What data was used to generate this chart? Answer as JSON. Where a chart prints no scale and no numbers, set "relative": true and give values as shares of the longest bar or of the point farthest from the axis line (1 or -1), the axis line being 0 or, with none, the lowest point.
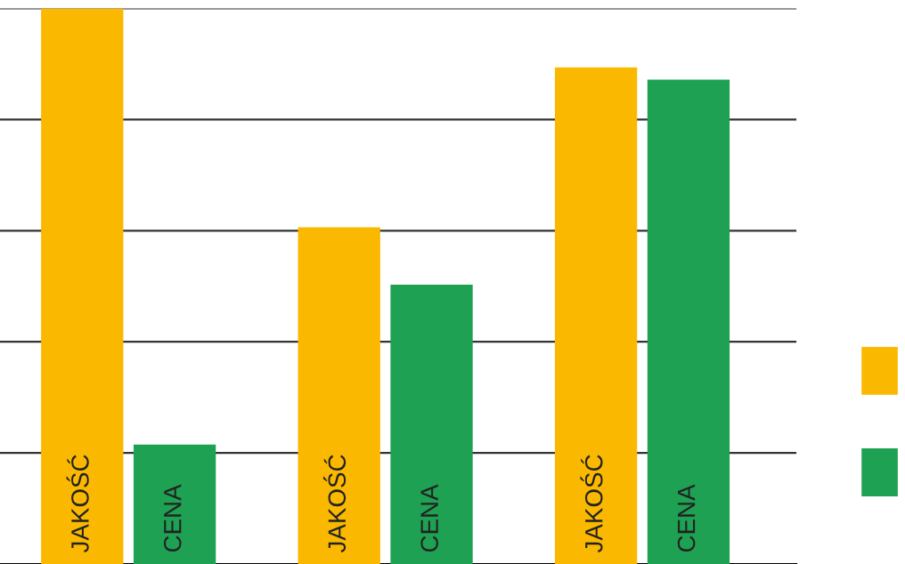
{
  "chart_data": {
    "type": "bar",
    "relative": true,
    "categories": [
      null,
      null,
      null
    ],
    "series": [
      {
        "name": "JAKOŚĆ",
        "color": "#fbb800",
        "values": [
          1,
          0.606,
          0.894
        ]
      },
      {
        "name": "CENA",
        "color": "#1ea152",
        "values": [
          0.215,
          0.503,
          0.872
        ]
      }
    ],
    "grid": "y"
  }
}
